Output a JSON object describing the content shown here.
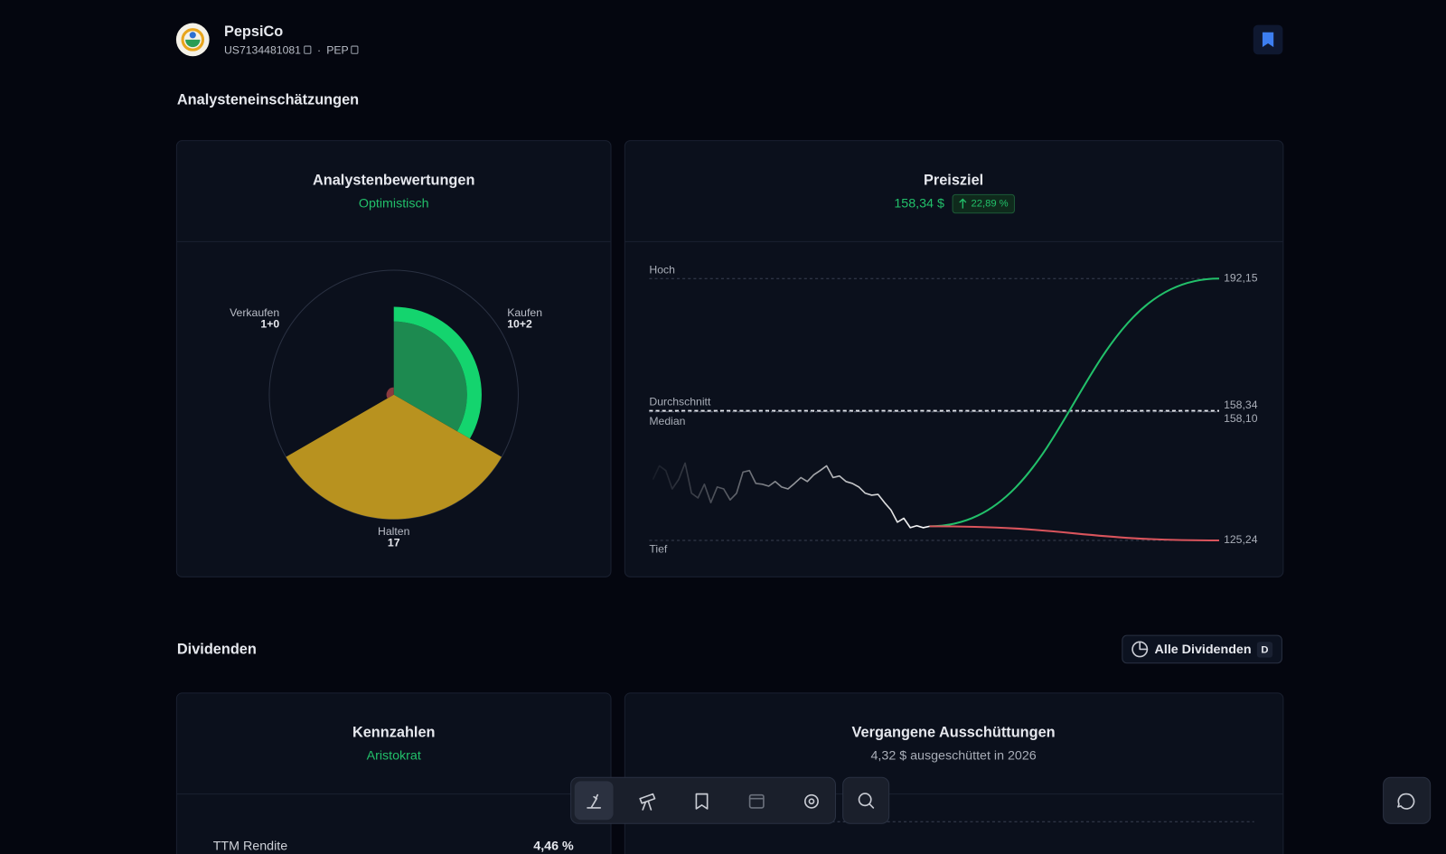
{
  "header": {
    "name": "PepsiCo",
    "isin": "US7134481081",
    "ticker": "PEP"
  },
  "analyst_section": {
    "title": "Analysteneinschätzungen"
  },
  "ratings": {
    "title": "Analystenbewertungen",
    "sentiment": "Optimistisch",
    "segments": [
      {
        "label": "Kaufen",
        "count_label": "10+2",
        "values": [
          10,
          2
        ],
        "colors": [
          "#1d8a50",
          "#14d46e"
        ]
      },
      {
        "label": "Halten",
        "count_label": "17",
        "values": [
          17
        ],
        "colors": [
          "#b8921f"
        ]
      },
      {
        "label": "Verkaufen",
        "count_label": "1+0",
        "values": [
          1,
          0
        ],
        "colors": [
          "#8a3a3f",
          "#d04545"
        ]
      }
    ]
  },
  "price_target": {
    "title": "Preisziel",
    "price_label": "158,34 $",
    "change_label": "22,89 %",
    "lines": [
      {
        "name": "Hoch",
        "value": 192.15,
        "label": "192,15"
      },
      {
        "name": "Durchschnitt",
        "value": 158.34,
        "label": "158,34"
      },
      {
        "name": "Median",
        "value": 158.1,
        "label": "158,10"
      },
      {
        "name": "Tief",
        "value": 125.24,
        "label": "125,24"
      }
    ],
    "history": [
      140.8,
      144.3,
      143.1,
      138.4,
      140.8,
      145.0,
      137.3,
      136.1,
      139.6,
      134.9,
      138.9,
      138.4,
      135.6,
      137.3,
      142.7,
      143.1,
      139.8,
      139.6,
      139.1,
      140.3,
      138.9,
      138.4,
      139.8,
      141.3,
      140.3,
      142.0,
      143.1,
      144.3,
      141.3,
      141.7,
      140.3,
      139.8,
      138.9,
      137.3,
      136.8,
      137.0,
      134.9,
      133.0,
      129.9,
      130.9,
      128.5,
      129.0,
      128.5,
      128.85
    ],
    "up_color": "#22c06a",
    "down_color": "#d9545c"
  },
  "dividend_section": {
    "title": "Dividenden",
    "button": "Alle Dividenden",
    "shortcut": "D"
  },
  "metrics": {
    "title": "Kennzahlen",
    "subtitle": "Aristokrat",
    "rows": [
      [
        "TTM Rendite",
        "4,46 %"
      ]
    ]
  },
  "payouts": {
    "title": "Vergangene Ausschüttungen",
    "subtitle": "4,32 $ ausgeschüttet in 2026"
  }
}
